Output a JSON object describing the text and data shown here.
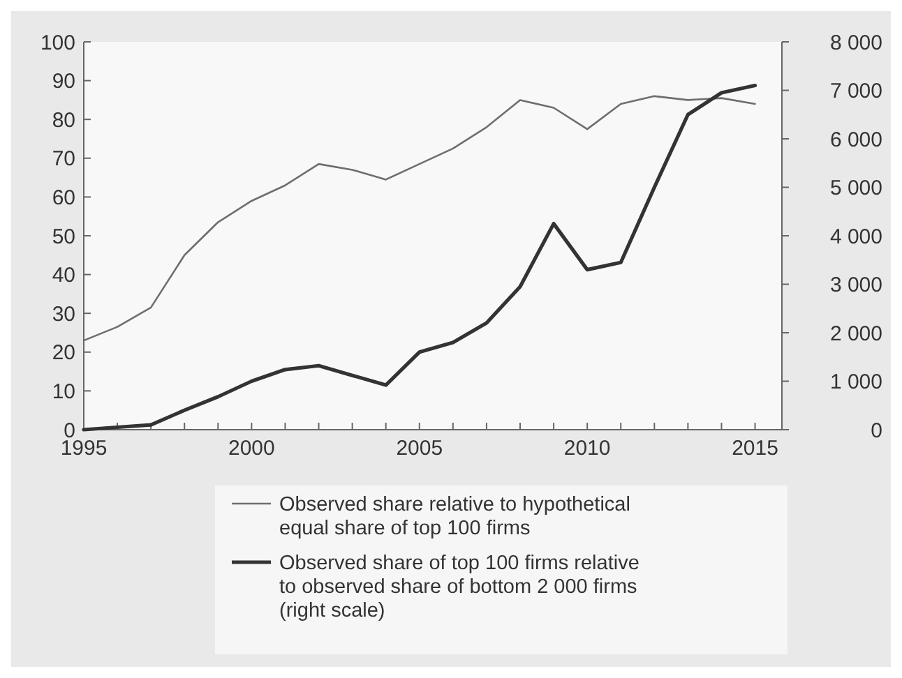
{
  "chart_data": {
    "type": "line",
    "x": [
      1995,
      1996,
      1997,
      1998,
      1999,
      2000,
      2001,
      2002,
      2003,
      2004,
      2005,
      2006,
      2007,
      2008,
      2009,
      2010,
      2011,
      2012,
      2013,
      2014,
      2015
    ],
    "series": [
      {
        "name": "Observed share relative to hypothetical equal share of top 100 firms",
        "color": "#6e6e6e",
        "values": [
          23,
          26.5,
          31.5,
          45,
          53.5,
          59,
          63,
          68.5,
          67,
          64.5,
          68.5,
          72.5,
          78,
          85,
          83,
          77.5,
          84,
          86,
          85,
          85.5,
          84
        ]
      },
      {
        "name": "Observed share of top 100 firms relative to observed share of bottom 2 000 firms (right scale)",
        "color": "#333333",
        "axis": "y2",
        "values": [
          0,
          50,
          100,
          400,
          680,
          1000,
          1240,
          1320,
          1120,
          920,
          1600,
          1800,
          2200,
          2950,
          4250,
          3300,
          3450,
          5000,
          6500,
          6950,
          7100
        ]
      }
    ],
    "xlim": [
      1995,
      2015.8
    ],
    "xticks": [
      1995,
      {
        "value": 1996,
        "label": null
      },
      {
        "value": 1997,
        "label": null
      },
      {
        "value": 1998,
        "label": null
      },
      {
        "value": 1999,
        "label": null
      },
      2000,
      {
        "value": 2001,
        "label": null
      },
      {
        "value": 2002,
        "label": null
      },
      {
        "value": 2003,
        "label": null
      },
      {
        "value": 2004,
        "label": null
      },
      2005,
      {
        "value": 2006,
        "label": null
      },
      {
        "value": 2007,
        "label": null
      },
      {
        "value": 2008,
        "label": null
      },
      {
        "value": 2009,
        "label": null
      },
      2010,
      {
        "value": 2011,
        "label": null
      },
      {
        "value": 2012,
        "label": null
      },
      {
        "value": 2013,
        "label": null
      },
      {
        "value": 2014,
        "label": null
      },
      2015
    ],
    "ylim": [
      0,
      100
    ],
    "yticks": [
      0,
      10,
      20,
      30,
      40,
      50,
      60,
      70,
      80,
      90,
      100
    ],
    "y2lim": [
      0,
      8000
    ],
    "y2ticks": [
      0,
      {
        "value": 1000,
        "label": "1 000"
      },
      {
        "value": 2000,
        "label": "2 000"
      },
      {
        "value": 3000,
        "label": "3 000"
      },
      {
        "value": 4000,
        "label": "4 000"
      },
      {
        "value": 5000,
        "label": "5 000"
      },
      {
        "value": 6000,
        "label": "6 000"
      },
      {
        "value": 7000,
        "label": "7 000"
      },
      {
        "value": 8000,
        "label": "8 000"
      }
    ],
    "legend": "bottom",
    "grid": false,
    "marker": "none",
    "line_style": "solid"
  }
}
